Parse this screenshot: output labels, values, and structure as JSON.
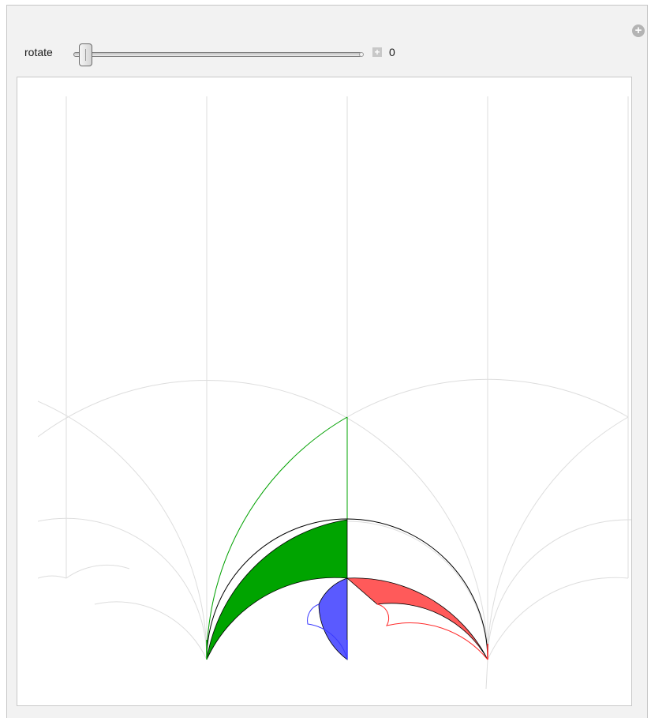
{
  "controls": {
    "slider_label": "rotate",
    "slider_value": "0",
    "slider_fraction": 0
  },
  "colors": {
    "guide": "#dddddd",
    "green": "#00a400",
    "red": "#ff5a5a",
    "blue": "#5a5aff",
    "outline": "#000000"
  },
  "icons": {
    "add": "plus-circle-icon",
    "animate": "plus-square-icon"
  }
}
